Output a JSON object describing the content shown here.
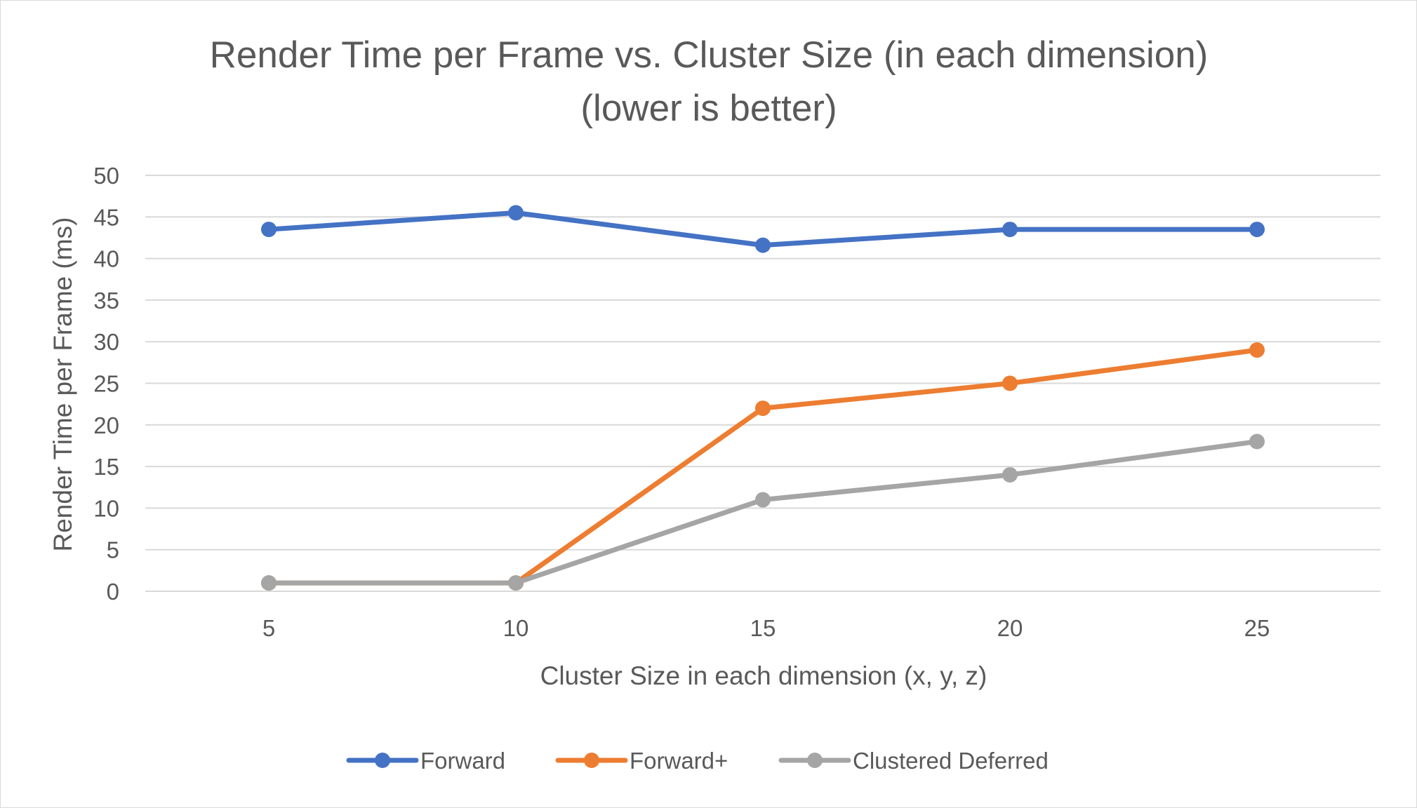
{
  "chart_data": {
    "type": "line",
    "title_line1": "Render Time per Frame vs. Cluster Size (in each dimension)",
    "title_line2": "(lower is better)",
    "xlabel": "Cluster Size in each dimension (x, y, z)",
    "ylabel": "Render Time per Frame (ms)",
    "categories": [
      "5",
      "10",
      "15",
      "20",
      "25"
    ],
    "ylim": [
      0,
      50
    ],
    "yticks": [
      0,
      5,
      10,
      15,
      20,
      25,
      30,
      35,
      40,
      45,
      50
    ],
    "grid": true,
    "legend_position": "bottom",
    "series": [
      {
        "name": "Forward",
        "color": "#4472C4",
        "values": [
          43.5,
          45.5,
          41.6,
          43.5,
          43.5
        ]
      },
      {
        "name": "Forward+",
        "color": "#ED7D31",
        "values": [
          1,
          1,
          22,
          25,
          29
        ]
      },
      {
        "name": "Clustered Deferred",
        "color": "#A5A5A5",
        "values": [
          1,
          1,
          11,
          14,
          18
        ]
      }
    ]
  },
  "colors": {
    "grid": "#d9d9d9",
    "text": "#595959",
    "border": "#d9d9d9"
  }
}
